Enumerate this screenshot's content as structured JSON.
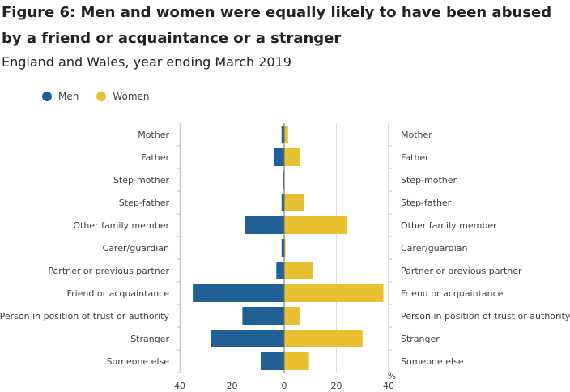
{
  "header": {
    "title": "Figure 6: Men and women were equally likely to have been abused by a friend or acquaintance or a stranger",
    "subtitle": "England and Wales, year ending March 2019"
  },
  "legend": {
    "men_label": "Men",
    "women_label": "Women"
  },
  "colors": {
    "men": "#206095",
    "women": "#e8c031",
    "grid": "#dddddd",
    "axis": "#bbbbbb"
  },
  "chart_data": {
    "type": "bar",
    "orientation": "horizontal-diverging",
    "categories": [
      "Mother",
      "Father",
      "Step-mother",
      "Step-father",
      "Other family member",
      "Carer/guardian",
      "Partner or previous partner",
      "Friend or acquaintance",
      "Person in position of trust or authority",
      "Stranger",
      "Someone else"
    ],
    "series": [
      {
        "name": "Men",
        "values": [
          1,
          4,
          0.3,
          1,
          15,
          1,
          3,
          35,
          16,
          28,
          9
        ],
        "direction": "left"
      },
      {
        "name": "Women",
        "values": [
          1.5,
          6,
          0,
          7.5,
          24,
          0.5,
          11,
          38,
          6,
          30,
          9.5
        ],
        "direction": "right"
      }
    ],
    "x_ticks": [
      "40",
      "20",
      "0",
      "20",
      "40"
    ],
    "x_unit": "%",
    "xlim": [
      -40,
      40
    ],
    "title": "Men and women were equally likely to have been abused by a friend or acquaintance or a stranger",
    "xlabel": "%",
    "ylabel": ""
  }
}
